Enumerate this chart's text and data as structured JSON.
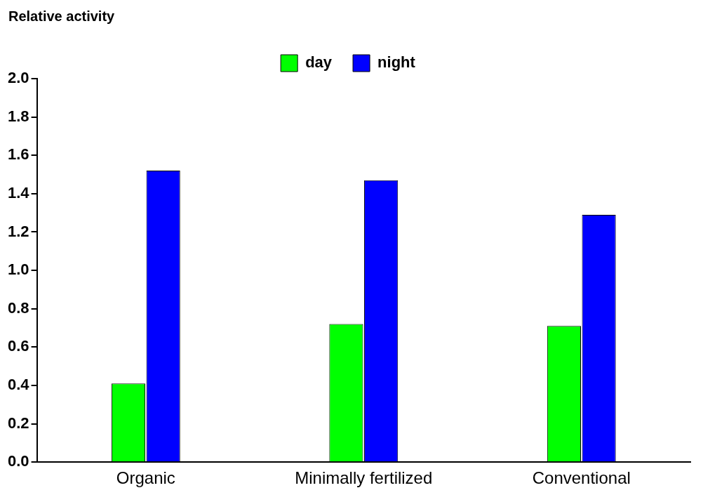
{
  "chart_data": {
    "type": "bar",
    "ylabel": "Relative activity",
    "categories": [
      "Organic",
      "Minimally fertilized",
      "Conventional"
    ],
    "series": [
      {
        "name": "day",
        "color": "#00ff00",
        "values": [
          0.41,
          0.72,
          0.71
        ]
      },
      {
        "name": "night",
        "color": "#0000ff",
        "values": [
          1.52,
          1.47,
          1.29
        ]
      }
    ],
    "ylim": [
      0,
      2
    ],
    "yticks": [
      {
        "value": 0,
        "label": "0.0"
      },
      {
        "value": 0.2,
        "label": "0.2"
      },
      {
        "value": 0.4,
        "label": "0.4"
      },
      {
        "value": 0.6,
        "label": "0.6"
      },
      {
        "value": 0.8,
        "label": "0.8"
      },
      {
        "value": 1,
        "label": "1.0"
      },
      {
        "value": 1.2,
        "label": "1.2"
      },
      {
        "value": 1.4,
        "label": "1.4"
      },
      {
        "value": 1.6,
        "label": "1.6"
      },
      {
        "value": 1.8,
        "label": "1.8"
      },
      {
        "value": 2,
        "label": "2.0"
      }
    ],
    "grid": false,
    "legend": "top"
  }
}
